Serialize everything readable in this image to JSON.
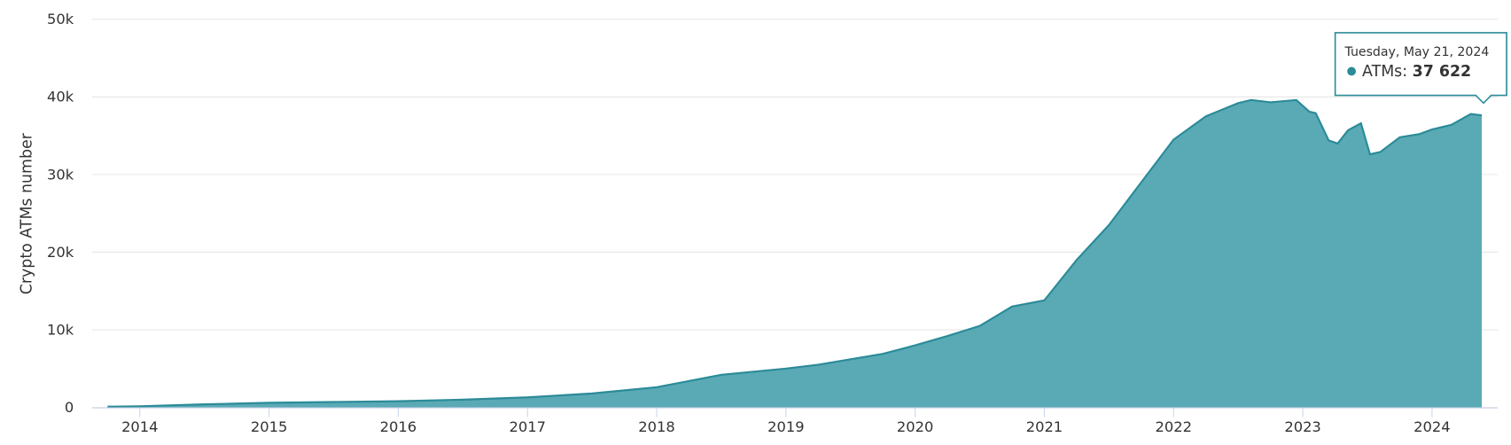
{
  "chart_data": {
    "type": "area",
    "y_label": "Crypto ATMs number",
    "xlim": [
      2013.63,
      2024.51
    ],
    "xticks": [
      2014,
      2015,
      2016,
      2017,
      2018,
      2019,
      2020,
      2021,
      2022,
      2023,
      2024
    ],
    "ylim": [
      0,
      50000
    ],
    "yticks": [
      0,
      {
        "value": 10000,
        "label": "10k"
      },
      {
        "value": 20000,
        "label": "20k"
      },
      {
        "value": 30000,
        "label": "30k"
      },
      {
        "value": 40000,
        "label": "40k"
      },
      {
        "value": 50000,
        "label": "50k"
      }
    ],
    "grid": true,
    "x": [
      2013.75,
      2014.0,
      2014.5,
      2015.0,
      2015.5,
      2016.0,
      2016.5,
      2017.0,
      2017.5,
      2017.75,
      2018.0,
      2018.25,
      2018.5,
      2018.75,
      2019.0,
      2019.25,
      2019.5,
      2019.75,
      2020.0,
      2020.25,
      2020.5,
      2020.75,
      2021.0,
      2021.25,
      2021.5,
      2021.75,
      2022.0,
      2022.25,
      2022.5,
      2022.6,
      2022.75,
      2022.95,
      2023.05,
      2023.1,
      2023.2,
      2023.27,
      2023.35,
      2023.45,
      2023.52,
      2023.6,
      2023.75,
      2023.9,
      2024.0,
      2024.15,
      2024.3,
      2024.385
    ],
    "series": [
      {
        "name": "ATMs",
        "color": "#5aaab6",
        "line_color": "#2b8b98",
        "values": [
          100,
          150,
          400,
          600,
          700,
          800,
          1000,
          1300,
          1800,
          2200,
          2600,
          3400,
          4200,
          4600,
          5000,
          5500,
          6200,
          6900,
          8000,
          9200,
          10500,
          13000,
          13800,
          19000,
          23500,
          29000,
          34500,
          37500,
          39200,
          39600,
          39300,
          39600,
          38100,
          37900,
          34400,
          34000,
          35700,
          36600,
          32600,
          32900,
          34800,
          35200,
          35800,
          36400,
          37800,
          37622
        ]
      }
    ],
    "tooltip": {
      "title": "Tuesday, May 21, 2024",
      "series_label": "ATMs:",
      "value": 37622,
      "value_label": "37 622"
    }
  }
}
